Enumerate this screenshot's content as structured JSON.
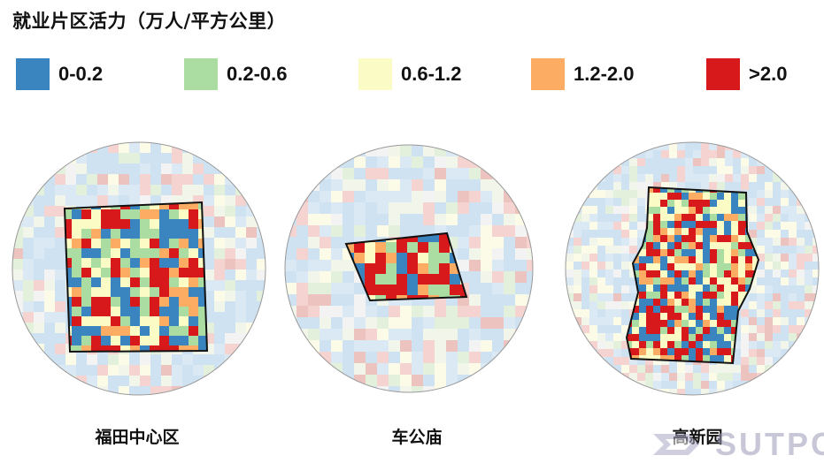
{
  "title": "就业片区活力（万人/平方公里）",
  "legend": [
    {
      "label": "0-0.2",
      "color": "#3a85bf"
    },
    {
      "label": "0.2-0.6",
      "color": "#abdda2"
    },
    {
      "label": "0.6-1.2",
      "color": "#fbfbc5"
    },
    {
      "label": "1.2-2.0",
      "color": "#fdad63"
    },
    {
      "label": ">2.0",
      "color": "#d7191c"
    }
  ],
  "maps": [
    {
      "label": "福田中心区"
    },
    {
      "label": "车公庙"
    },
    {
      "label": "高新园"
    }
  ],
  "watermark": {
    "logo": "sutpc-logo",
    "text": "SUTPC"
  }
}
